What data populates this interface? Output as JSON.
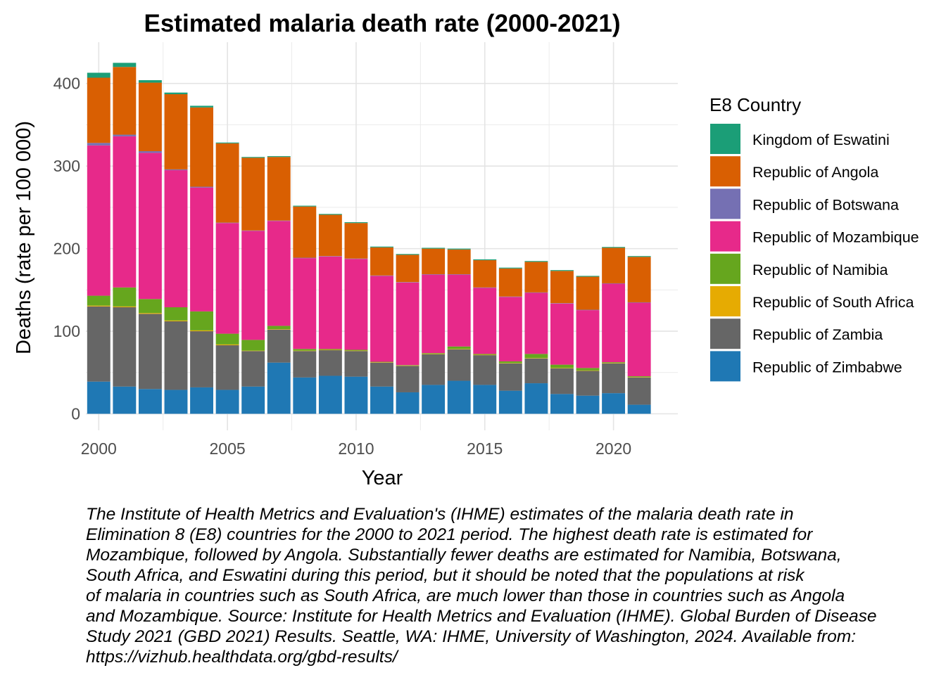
{
  "chart_data": {
    "type": "bar",
    "stacked": true,
    "title": "Estimated malaria death rate (2000-2021)",
    "xlabel": "Year",
    "ylabel": "Deaths (rate per 100 000)",
    "xlim": [
      1999.5,
      2022.5
    ],
    "ylim": [
      -20,
      450
    ],
    "x_ticks": [
      2000,
      2005,
      2010,
      2015,
      2020
    ],
    "y_ticks": [
      0,
      100,
      200,
      300,
      400
    ],
    "grid": true,
    "legend": {
      "title": "E8 Country",
      "position": "right"
    },
    "x": [
      2000,
      2001,
      2002,
      2003,
      2004,
      2005,
      2006,
      2007,
      2008,
      2009,
      2010,
      2011,
      2012,
      2013,
      2014,
      2015,
      2016,
      2017,
      2018,
      2019,
      2020,
      2021
    ],
    "series": [
      {
        "name": "Republic of Zimbabwe",
        "color": "#1F78B4",
        "values": [
          39,
          33,
          30,
          29,
          32,
          29,
          33,
          62,
          44,
          46,
          45,
          33,
          26,
          35,
          40,
          35,
          28,
          37,
          24,
          22,
          25,
          11
        ]
      },
      {
        "name": "Republic of Zambia",
        "color": "#666666",
        "values": [
          91,
          96,
          91,
          83,
          68,
          54,
          43,
          40,
          32,
          31,
          31,
          29,
          32,
          37,
          38,
          36,
          33,
          30,
          31,
          30,
          36,
          33
        ]
      },
      {
        "name": "Republic of South Africa",
        "color": "#E6AB02",
        "values": [
          1,
          1,
          1,
          1,
          1,
          1,
          0.5,
          0.5,
          0.5,
          0.5,
          0.5,
          0.5,
          0.5,
          0.5,
          0.5,
          0.5,
          0.5,
          0.5,
          0.5,
          0.5,
          0.5,
          0.5
        ]
      },
      {
        "name": "Republic of Namibia",
        "color": "#66A61E",
        "values": [
          12,
          23,
          17,
          16,
          23,
          13,
          13,
          4,
          2,
          1,
          1,
          0.5,
          0.5,
          1,
          3,
          1,
          2,
          5,
          4,
          3,
          1,
          1
        ]
      },
      {
        "name": "Republic of Mozambique",
        "color": "#E7298A",
        "values": [
          182,
          183,
          177,
          166,
          150,
          134,
          132,
          127,
          110,
          112,
          110,
          104,
          100,
          95,
          87,
          80,
          78,
          74,
          74,
          70,
          95,
          89
        ]
      },
      {
        "name": "Republic of Botswana",
        "color": "#7570B3",
        "values": [
          3,
          2,
          2,
          1,
          1,
          0.5,
          0.5,
          0.5,
          0.5,
          0.5,
          0.5,
          0.5,
          0.5,
          0.5,
          0.5,
          0.5,
          0.5,
          0.5,
          0.5,
          0.5,
          0.5,
          0.5
        ]
      },
      {
        "name": "Republic of Angola",
        "color": "#D95F02",
        "values": [
          79,
          82,
          83,
          91,
          96,
          96,
          88,
          77,
          62,
          50,
          43,
          34,
          33,
          31,
          30,
          33,
          34,
          37,
          39,
          40,
          43,
          55
        ]
      },
      {
        "name": "Kingdom of Eswatini",
        "color": "#1B9E77",
        "values": [
          6,
          5,
          3,
          2,
          2,
          1,
          1,
          1,
          1,
          1,
          1,
          1,
          1,
          1,
          1,
          1,
          1,
          1,
          1,
          1,
          1,
          1
        ]
      }
    ],
    "legend_order": [
      "Kingdom of Eswatini",
      "Republic of Angola",
      "Republic of Botswana",
      "Republic of Mozambique",
      "Republic of Namibia",
      "Republic of South Africa",
      "Republic of Zambia",
      "Republic of Zimbabwe"
    ]
  },
  "caption_lines": [
    "The Institute of Health Metrics and Evaluation's (IHME) estimates of the malaria death rate in",
    "Elimination 8 (E8) countries for the 2000 to 2021 period. The highest death rate is estimated for",
    "Mozambique, followed by Angola. Substantially fewer deaths are estimated for Namibia, Botswana,",
    "South Africa, and Eswatini during this period, but it should be noted that the populations at risk",
    "of malaria in countries such as South Africa, are much lower than those in countries such as Angola",
    "and Mozambique. Source: Institute for Health Metrics and Evaluation (IHME). Global Burden of Disease",
    "Study 2021 (GBD 2021) Results. Seattle, WA: IHME, University of Washington, 2024. Available from:",
    "https://vizhub.healthdata.org/gbd-results/"
  ]
}
